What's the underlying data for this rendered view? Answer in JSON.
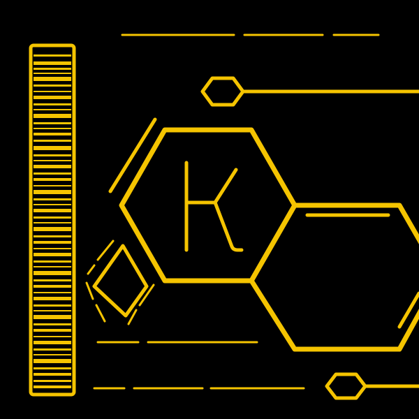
{
  "artwork": {
    "letter": "K",
    "colors": {
      "background": "#000000",
      "accent": "#F5C400"
    }
  }
}
